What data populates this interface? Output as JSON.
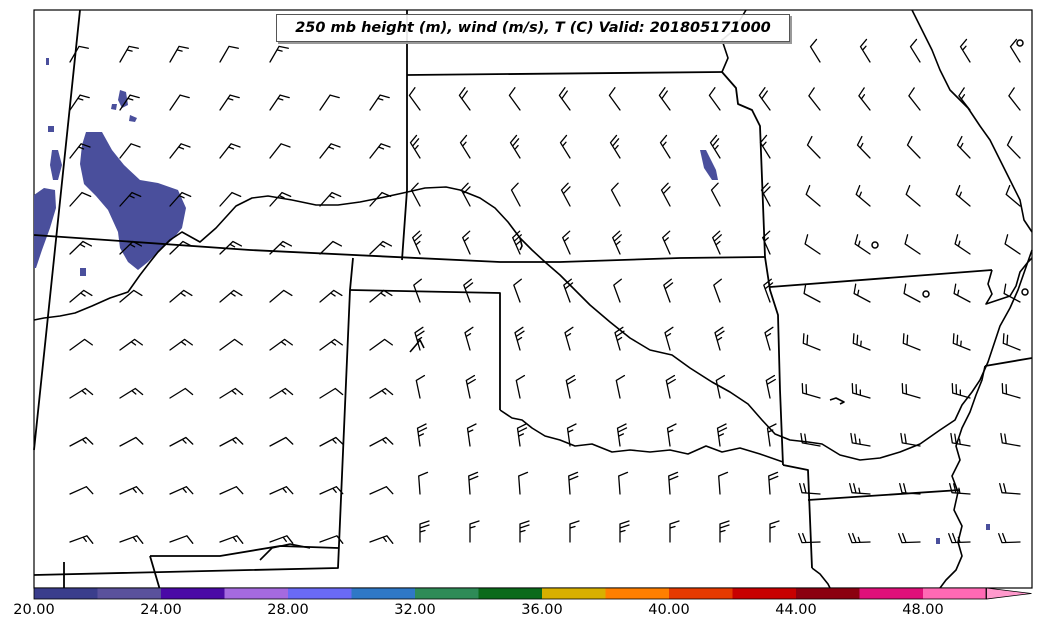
{
  "title": "250 mb height (m), wind (m/s), T (C) Valid: 201805171000",
  "colorbar": {
    "labels": [
      "20.00",
      "24.00",
      "28.00",
      "32.00",
      "36.00",
      "40.00",
      "44.00",
      "48.00"
    ],
    "colors": [
      "#3a3d8c",
      "#5a519c",
      "#4a0aa6",
      "#a56ae0",
      "#6a6af5",
      "#2f78c6",
      "#2e8b57",
      "#0b6a1a",
      "#d8b000",
      "#ff7f00",
      "#e63a00",
      "#c80000",
      "#8b0010",
      "#e0107a",
      "#ff69b4",
      "#ff99cc"
    ],
    "extend": "max"
  },
  "temperature_shading_color": "#4a4f9c"
}
